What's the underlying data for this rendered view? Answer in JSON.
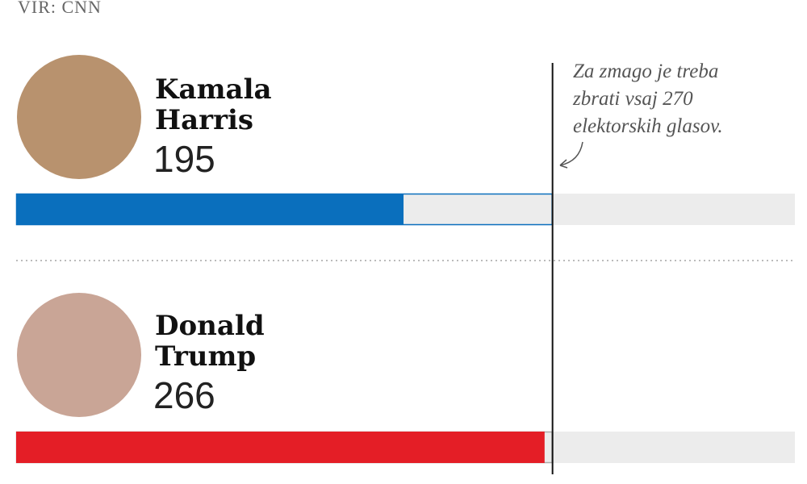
{
  "chart_data": {
    "type": "bar",
    "source": "VIR: CNN",
    "series": [
      {
        "name": "Kamala Harris",
        "value": 195,
        "color": "#0a6fbd"
      },
      {
        "name": "Donald Trump",
        "value": 266,
        "color": "#e41e26"
      }
    ],
    "threshold": 270,
    "annotation": "Za zmago je treba zbrati vsaj 270 elektorskih glasov.",
    "xlim": [
      0,
      392
    ]
  }
}
